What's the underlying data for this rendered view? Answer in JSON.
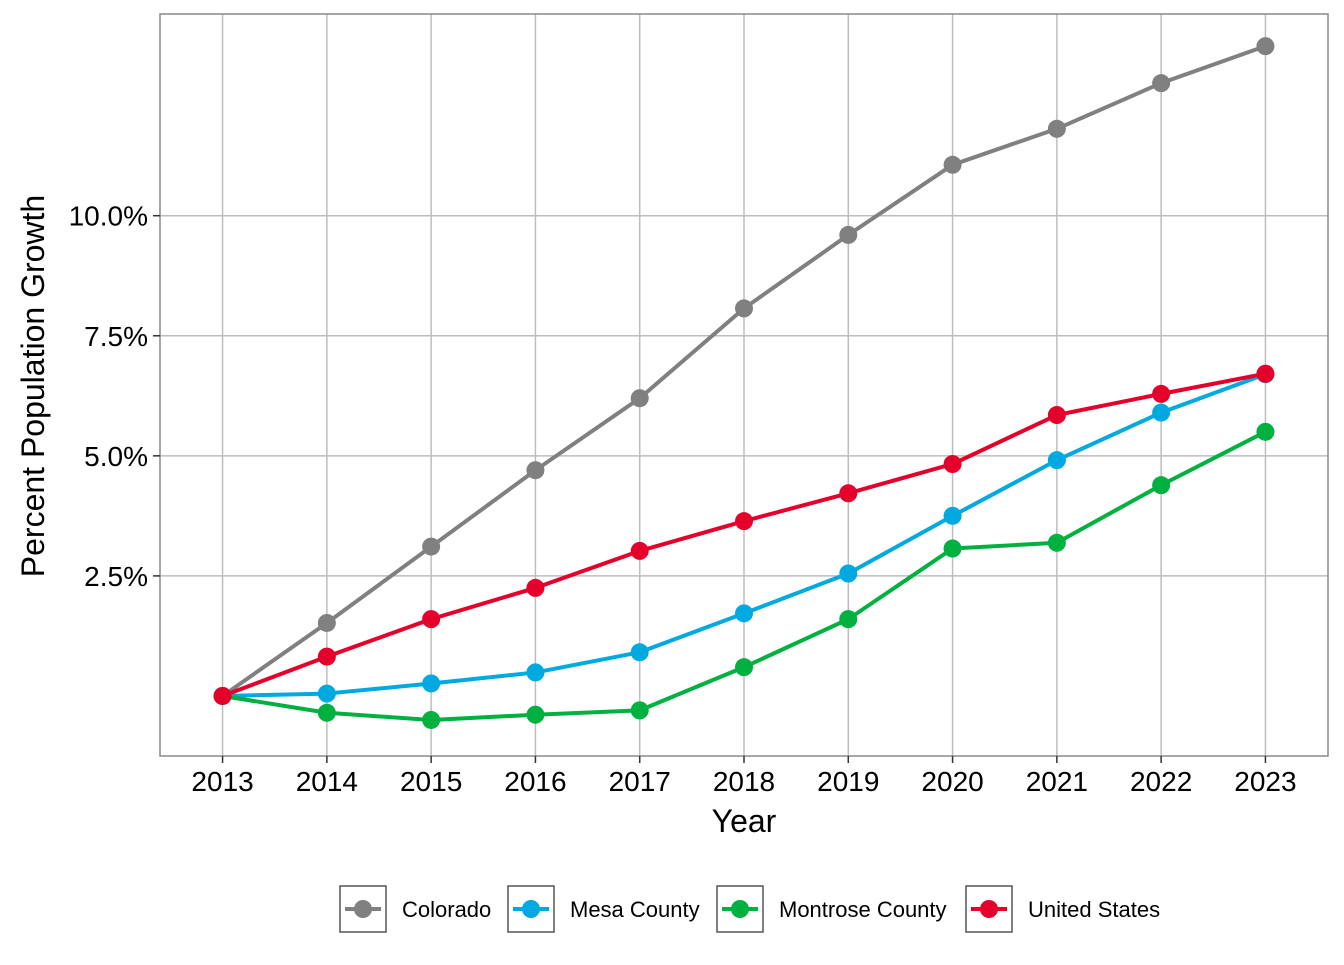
{
  "chart_data": {
    "type": "line",
    "title": "",
    "xlabel": "Year",
    "ylabel": "Percent Population Growth",
    "categories": [
      "2013",
      "2014",
      "2015",
      "2016",
      "2017",
      "2018",
      "2019",
      "2020",
      "2021",
      "2022",
      "2023"
    ],
    "x": [
      2013,
      2014,
      2015,
      2016,
      2017,
      2018,
      2019,
      2020,
      2021,
      2022,
      2023
    ],
    "xlim": [
      2012.4,
      2023.6
    ],
    "ylim": [
      -1.25,
      14.2
    ],
    "y_ticks": [
      2.5,
      5.0,
      7.5,
      10.0
    ],
    "y_tick_labels": [
      "2.5%",
      "5.0%",
      "7.5%",
      "10.0%"
    ],
    "grid": true,
    "legend_position": "bottom",
    "series": [
      {
        "name": "Colorado",
        "color": "#808080",
        "values": [
          0.0,
          1.52,
          3.11,
          4.7,
          6.2,
          8.07,
          9.6,
          11.06,
          11.81,
          12.76,
          13.53
        ]
      },
      {
        "name": "Mesa County",
        "color": "#00A9E0",
        "values": [
          0.0,
          0.05,
          0.26,
          0.49,
          0.91,
          1.72,
          2.55,
          3.75,
          4.91,
          5.9,
          6.7
        ]
      },
      {
        "name": "Montrose County",
        "color": "#00B140",
        "values": [
          0.0,
          -0.35,
          -0.5,
          -0.39,
          -0.3,
          0.6,
          1.6,
          3.07,
          3.19,
          4.39,
          5.5
        ]
      },
      {
        "name": "United States",
        "color": "#E4002B",
        "values": [
          0.0,
          0.82,
          1.6,
          2.25,
          3.02,
          3.64,
          4.22,
          4.83,
          5.85,
          6.29,
          6.71
        ]
      }
    ]
  }
}
